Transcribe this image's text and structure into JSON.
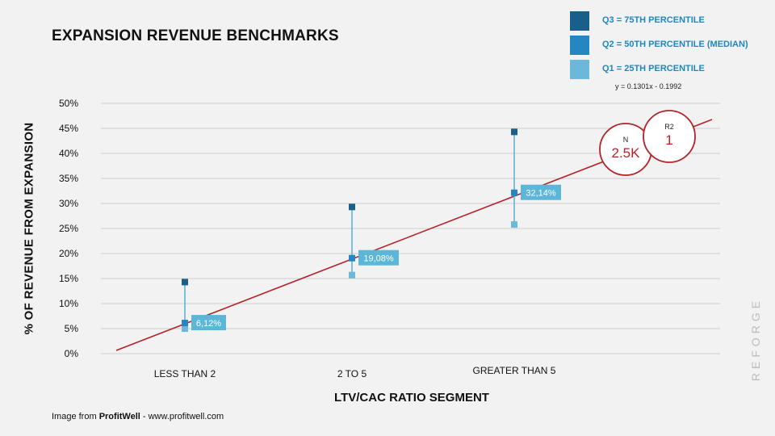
{
  "chart_data": {
    "type": "scatter",
    "title": "EXPANSION REVENUE BENCHMARKS",
    "xlabel": "LTV/CAC RATIO SEGMENT",
    "ylabel": "% OF REVENUE FROM EXPANSION",
    "categories": [
      "LESS THAN 2",
      "2 TO 5",
      "GREATER THAN 5"
    ],
    "ylim": [
      0,
      50
    ],
    "yticks": [
      "0%",
      "5%",
      "10%",
      "15%",
      "20%",
      "25%",
      "30%",
      "35%",
      "40%",
      "45%",
      "50%"
    ],
    "grid": true,
    "legend_position": "top-right",
    "series": [
      {
        "name": "Q3 = 75TH PERCENTILE",
        "color": "#1a5f8a",
        "values": [
          14.3,
          29.3,
          44.3
        ]
      },
      {
        "name": "Q2 = 50TH PERCENTILE (MEDIAN)",
        "color": "#2487c2",
        "values": [
          6.12,
          19.08,
          32.14
        ]
      },
      {
        "name": "Q1 = 25TH PERCENTILE",
        "color": "#6cb8da",
        "values": [
          5.0,
          15.7,
          25.8
        ]
      }
    ],
    "median_labels": [
      "6,12%",
      "19,08%",
      "32,14%"
    ],
    "trendline": {
      "equation": "y = 0.1301x - 0.1992",
      "color": "#b5222a"
    },
    "stats": [
      {
        "label": "N",
        "value": "2.5K"
      },
      {
        "label": "R2",
        "value": "1"
      }
    ]
  },
  "footer": {
    "source_prefix": "Image from ",
    "source_name": "ProfitWell",
    "source_suffix": " - www.profitwell.com"
  },
  "watermark": "REFORGE"
}
